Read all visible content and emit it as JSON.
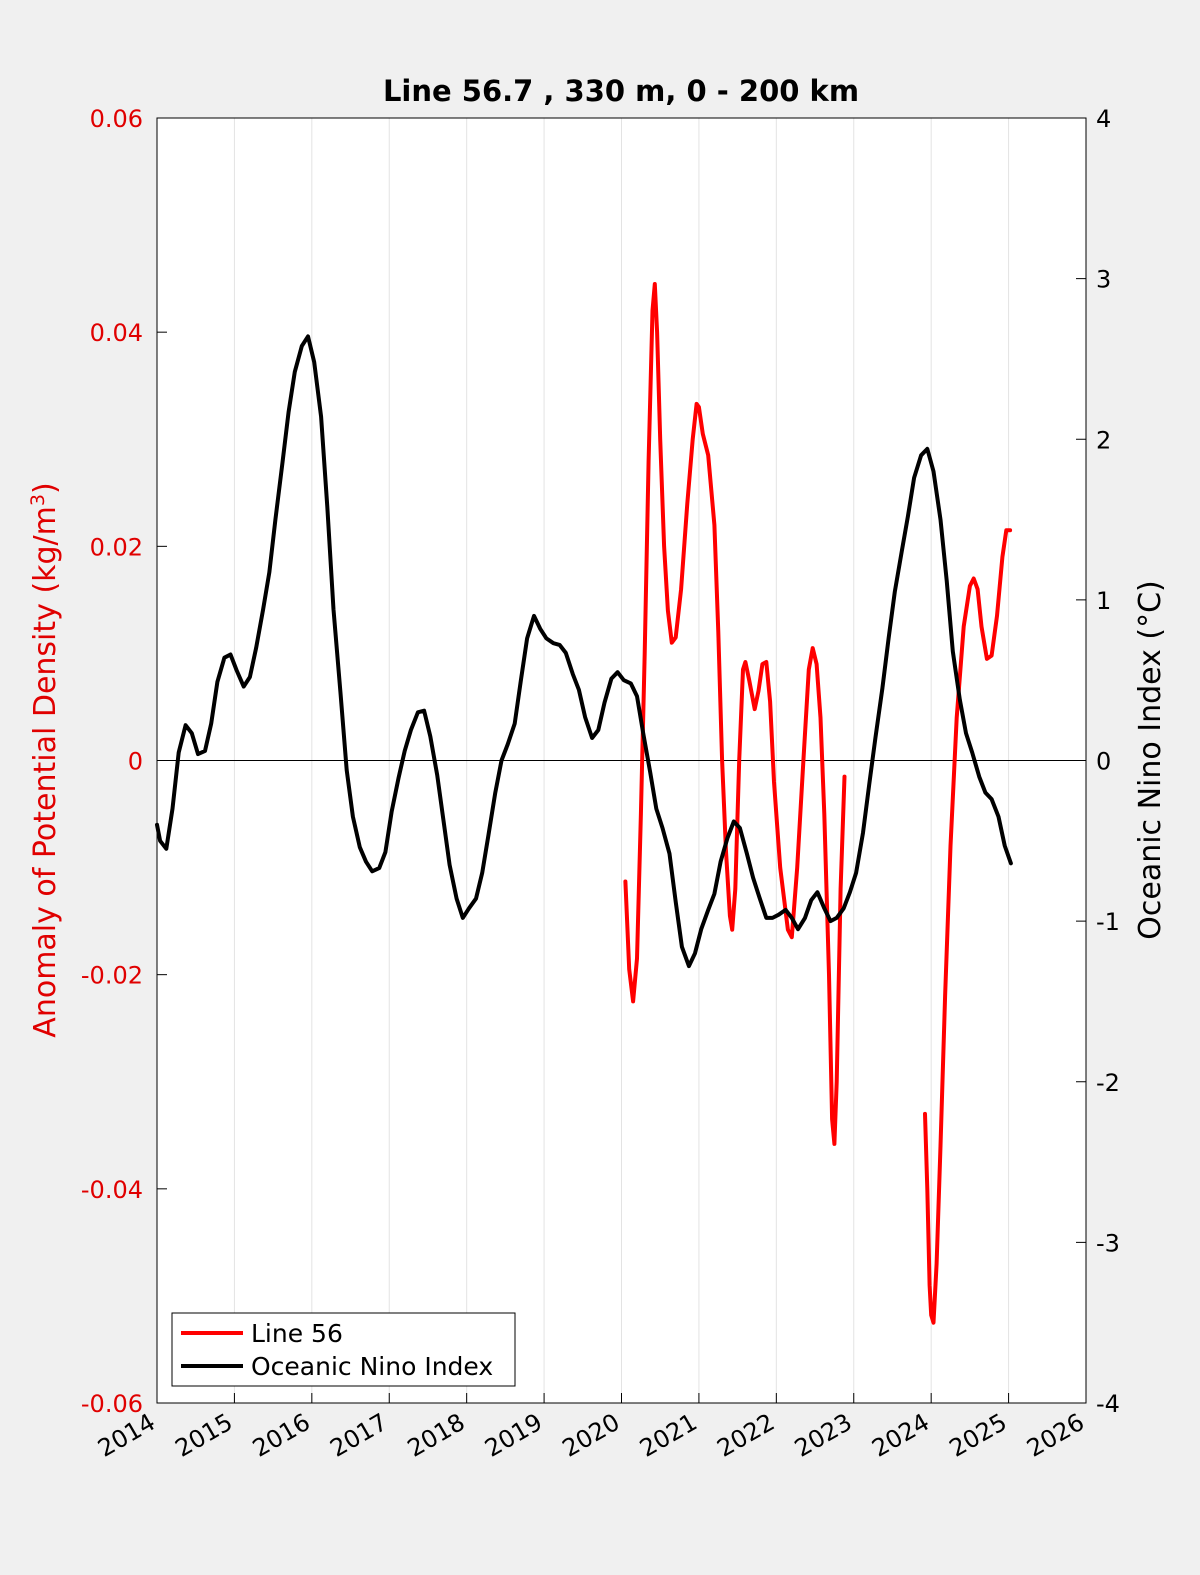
{
  "chart_data": {
    "type": "line",
    "title": "Line 56.7 , 330 m, 0 - 200 km",
    "ylabel_left": "Anomaly of Potential Density (kg/m",
    "ylabel_left_sup": "3",
    "ylabel_left_close": ")",
    "ylabel_right": "Oceanic Nino Index (°C)",
    "xlim": [
      2014,
      2026
    ],
    "ylim_left": [
      -0.06,
      0.06
    ],
    "ylim_right": [
      -4,
      4
    ],
    "x_ticks": [
      2014,
      2015,
      2016,
      2017,
      2018,
      2019,
      2020,
      2021,
      2022,
      2023,
      2024,
      2025,
      2026
    ],
    "x_tick_labels": [
      "2014",
      "2015",
      "2016",
      "2017",
      "2018",
      "2019",
      "2020",
      "2021",
      "2022",
      "2023",
      "2024",
      "2025",
      "2026"
    ],
    "left_ticks": [
      0.06,
      0.04,
      0.02,
      0,
      -0.02,
      -0.04,
      -0.06
    ],
    "left_tick_labels": [
      "0.06",
      "0.04",
      "0.02",
      "0",
      "-0.02",
      "-0.04",
      "-0.06"
    ],
    "right_ticks": [
      4,
      3,
      2,
      1,
      0,
      -1,
      -2,
      -3,
      -4
    ],
    "right_tick_labels": [
      "4",
      "3",
      "2",
      "1",
      "0",
      "-1",
      "-2",
      "-3",
      "-4"
    ],
    "grid": "vertical",
    "legend_position": "bottom-left",
    "colors": {
      "line56": "#ff0000",
      "oni": "#000000",
      "left_axis": "#e00000"
    },
    "series": [
      {
        "name": "Line 56",
        "axis": "left",
        "segments": [
          [
            [
              2020.05,
              -0.0113
            ],
            [
              2020.1,
              -0.0195
            ],
            [
              2020.15,
              -0.0225
            ],
            [
              2020.2,
              -0.0185
            ],
            [
              2020.25,
              -0.005
            ],
            [
              2020.3,
              0.01
            ],
            [
              2020.35,
              0.028
            ],
            [
              2020.4,
              0.042
            ],
            [
              2020.43,
              0.0445
            ],
            [
              2020.46,
              0.04
            ],
            [
              2020.5,
              0.03
            ],
            [
              2020.55,
              0.02
            ],
            [
              2020.6,
              0.014
            ],
            [
              2020.65,
              0.011
            ],
            [
              2020.7,
              0.0115
            ],
            [
              2020.77,
              0.016
            ],
            [
              2020.85,
              0.024
            ],
            [
              2020.92,
              0.03
            ],
            [
              2020.97,
              0.0333
            ],
            [
              2021.0,
              0.033
            ],
            [
              2021.05,
              0.0305
            ],
            [
              2021.12,
              0.0285
            ],
            [
              2021.2,
              0.022
            ],
            [
              2021.25,
              0.012
            ],
            [
              2021.3,
              0.0
            ],
            [
              2021.35,
              -0.0085
            ],
            [
              2021.4,
              -0.0145
            ],
            [
              2021.43,
              -0.0158
            ],
            [
              2021.47,
              -0.012
            ],
            [
              2021.52,
              0.0
            ],
            [
              2021.57,
              0.0085
            ],
            [
              2021.6,
              0.0092
            ],
            [
              2021.65,
              0.0075
            ],
            [
              2021.72,
              0.0048
            ],
            [
              2021.77,
              0.0065
            ],
            [
              2021.82,
              0.009
            ],
            [
              2021.87,
              0.0092
            ],
            [
              2021.92,
              0.0055
            ],
            [
              2021.97,
              -0.002
            ],
            [
              2022.05,
              -0.01
            ],
            [
              2022.15,
              -0.0158
            ],
            [
              2022.2,
              -0.0165
            ],
            [
              2022.27,
              -0.01
            ],
            [
              2022.35,
              0.0
            ],
            [
              2022.42,
              0.0085
            ],
            [
              2022.47,
              0.0105
            ],
            [
              2022.52,
              0.009
            ],
            [
              2022.57,
              0.004
            ],
            [
              2022.62,
              -0.005
            ],
            [
              2022.68,
              -0.02
            ],
            [
              2022.72,
              -0.0335
            ],
            [
              2022.75,
              -0.0358
            ],
            [
              2022.78,
              -0.03
            ],
            [
              2022.83,
              -0.012
            ],
            [
              2022.88,
              -0.0015
            ]
          ],
          [
            [
              2023.92,
              -0.033
            ],
            [
              2023.95,
              -0.04
            ],
            [
              2023.98,
              -0.049
            ],
            [
              2024.0,
              -0.0518
            ],
            [
              2024.03,
              -0.0525
            ],
            [
              2024.07,
              -0.047
            ],
            [
              2024.12,
              -0.036
            ],
            [
              2024.18,
              -0.022
            ],
            [
              2024.25,
              -0.008
            ],
            [
              2024.33,
              0.004
            ],
            [
              2024.42,
              0.0125
            ],
            [
              2024.5,
              0.0163
            ],
            [
              2024.55,
              0.017
            ],
            [
              2024.6,
              0.016
            ],
            [
              2024.65,
              0.0125
            ],
            [
              2024.72,
              0.0095
            ],
            [
              2024.78,
              0.0098
            ],
            [
              2024.85,
              0.0135
            ],
            [
              2024.92,
              0.019
            ],
            [
              2024.97,
              0.0215
            ],
            [
              2025.02,
              0.0215
            ]
          ]
        ]
      },
      {
        "name": "Oceanic Nino Index",
        "axis": "right",
        "points": [
          [
            2014.0,
            -0.4
          ],
          [
            2014.04,
            -0.5
          ],
          [
            2014.12,
            -0.55
          ],
          [
            2014.2,
            -0.3
          ],
          [
            2014.28,
            0.05
          ],
          [
            2014.37,
            0.22
          ],
          [
            2014.45,
            0.17
          ],
          [
            2014.53,
            0.04
          ],
          [
            2014.62,
            0.06
          ],
          [
            2014.7,
            0.23
          ],
          [
            2014.78,
            0.49
          ],
          [
            2014.87,
            0.64
          ],
          [
            2014.95,
            0.66
          ],
          [
            2015.03,
            0.56
          ],
          [
            2015.12,
            0.46
          ],
          [
            2015.2,
            0.52
          ],
          [
            2015.28,
            0.7
          ],
          [
            2015.37,
            0.94
          ],
          [
            2015.45,
            1.17
          ],
          [
            2015.53,
            1.5
          ],
          [
            2015.62,
            1.85
          ],
          [
            2015.7,
            2.17
          ],
          [
            2015.78,
            2.42
          ],
          [
            2015.87,
            2.58
          ],
          [
            2015.95,
            2.64
          ],
          [
            2016.03,
            2.48
          ],
          [
            2016.12,
            2.14
          ],
          [
            2016.2,
            1.58
          ],
          [
            2016.28,
            0.94
          ],
          [
            2016.37,
            0.42
          ],
          [
            2016.45,
            -0.06
          ],
          [
            2016.53,
            -0.35
          ],
          [
            2016.62,
            -0.54
          ],
          [
            2016.7,
            -0.63
          ],
          [
            2016.78,
            -0.69
          ],
          [
            2016.87,
            -0.67
          ],
          [
            2016.95,
            -0.57
          ],
          [
            2017.03,
            -0.32
          ],
          [
            2017.12,
            -0.11
          ],
          [
            2017.2,
            0.06
          ],
          [
            2017.28,
            0.19
          ],
          [
            2017.37,
            0.3
          ],
          [
            2017.45,
            0.31
          ],
          [
            2017.53,
            0.15
          ],
          [
            2017.62,
            -0.09
          ],
          [
            2017.7,
            -0.37
          ],
          [
            2017.78,
            -0.65
          ],
          [
            2017.87,
            -0.86
          ],
          [
            2017.95,
            -0.98
          ],
          [
            2018.03,
            -0.92
          ],
          [
            2018.12,
            -0.86
          ],
          [
            2018.2,
            -0.7
          ],
          [
            2018.28,
            -0.47
          ],
          [
            2018.37,
            -0.2
          ],
          [
            2018.45,
            0.0
          ],
          [
            2018.53,
            0.1
          ],
          [
            2018.62,
            0.23
          ],
          [
            2018.7,
            0.5
          ],
          [
            2018.78,
            0.76
          ],
          [
            2018.87,
            0.9
          ],
          [
            2018.95,
            0.82
          ],
          [
            2019.03,
            0.76
          ],
          [
            2019.12,
            0.73
          ],
          [
            2019.2,
            0.72
          ],
          [
            2019.28,
            0.67
          ],
          [
            2019.37,
            0.54
          ],
          [
            2019.45,
            0.44
          ],
          [
            2019.53,
            0.27
          ],
          [
            2019.62,
            0.14
          ],
          [
            2019.7,
            0.19
          ],
          [
            2019.78,
            0.36
          ],
          [
            2019.87,
            0.51
          ],
          [
            2019.95,
            0.55
          ],
          [
            2020.03,
            0.5
          ],
          [
            2020.12,
            0.48
          ],
          [
            2020.2,
            0.4
          ],
          [
            2020.28,
            0.17
          ],
          [
            2020.37,
            -0.07
          ],
          [
            2020.45,
            -0.3
          ],
          [
            2020.53,
            -0.42
          ],
          [
            2020.62,
            -0.58
          ],
          [
            2020.7,
            -0.88
          ],
          [
            2020.78,
            -1.16
          ],
          [
            2020.87,
            -1.28
          ],
          [
            2020.95,
            -1.2
          ],
          [
            2021.03,
            -1.05
          ],
          [
            2021.12,
            -0.93
          ],
          [
            2021.2,
            -0.83
          ],
          [
            2021.28,
            -0.63
          ],
          [
            2021.37,
            -0.48
          ],
          [
            2021.45,
            -0.38
          ],
          [
            2021.53,
            -0.42
          ],
          [
            2021.62,
            -0.58
          ],
          [
            2021.7,
            -0.73
          ],
          [
            2021.78,
            -0.85
          ],
          [
            2021.87,
            -0.98
          ],
          [
            2021.95,
            -0.98
          ],
          [
            2022.03,
            -0.96
          ],
          [
            2022.12,
            -0.93
          ],
          [
            2022.2,
            -0.98
          ],
          [
            2022.28,
            -1.05
          ],
          [
            2022.37,
            -0.98
          ],
          [
            2022.45,
            -0.87
          ],
          [
            2022.53,
            -0.82
          ],
          [
            2022.62,
            -0.92
          ],
          [
            2022.7,
            -1.0
          ],
          [
            2022.78,
            -0.98
          ],
          [
            2022.87,
            -0.92
          ],
          [
            2022.95,
            -0.82
          ],
          [
            2023.03,
            -0.7
          ],
          [
            2023.12,
            -0.45
          ],
          [
            2023.2,
            -0.15
          ],
          [
            2023.28,
            0.14
          ],
          [
            2023.37,
            0.45
          ],
          [
            2023.45,
            0.76
          ],
          [
            2023.53,
            1.05
          ],
          [
            2023.62,
            1.3
          ],
          [
            2023.7,
            1.52
          ],
          [
            2023.78,
            1.76
          ],
          [
            2023.87,
            1.9
          ],
          [
            2023.95,
            1.94
          ],
          [
            2024.03,
            1.8
          ],
          [
            2024.12,
            1.5
          ],
          [
            2024.2,
            1.12
          ],
          [
            2024.28,
            0.68
          ],
          [
            2024.37,
            0.38
          ],
          [
            2024.45,
            0.17
          ],
          [
            2024.53,
            0.05
          ],
          [
            2024.62,
            -0.1
          ],
          [
            2024.7,
            -0.2
          ],
          [
            2024.78,
            -0.24
          ],
          [
            2024.87,
            -0.35
          ],
          [
            2024.95,
            -0.53
          ],
          [
            2025.03,
            -0.64
          ]
        ]
      }
    ]
  }
}
